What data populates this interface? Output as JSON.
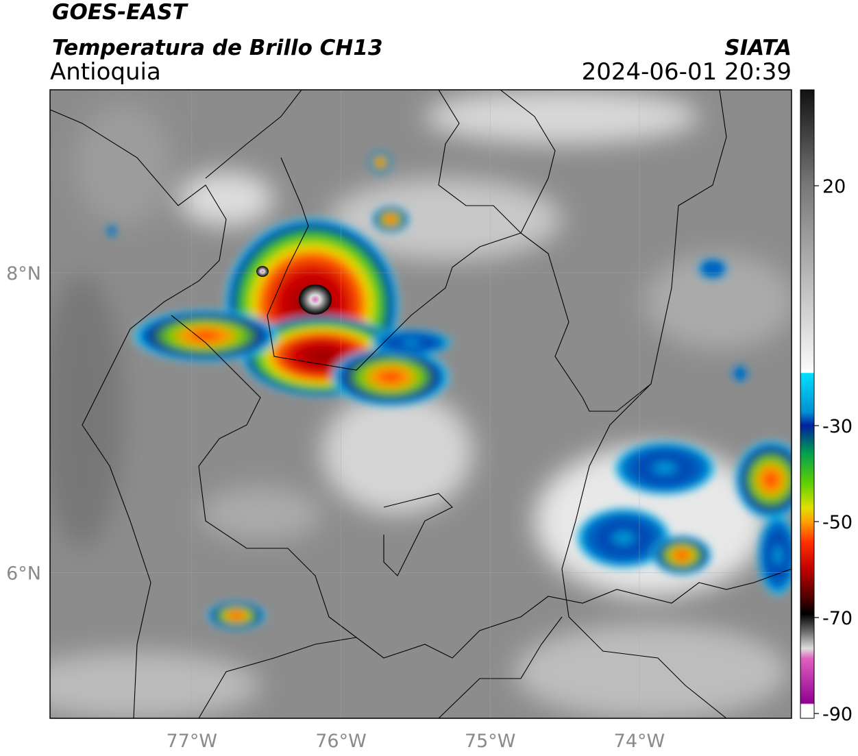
{
  "header": {
    "satellite": "GOES-EAST",
    "product": "Temperatura de Brillo CH13",
    "region": "Antioquia",
    "source": "SIATA",
    "datetime": "2024-06-01 20:39"
  },
  "map": {
    "xlim": [
      -77.95,
      -72.98
    ],
    "ylim": [
      5.03,
      9.22
    ],
    "xticks": [
      {
        "value": -77,
        "label": "77°W"
      },
      {
        "value": -76,
        "label": "76°W"
      },
      {
        "value": -75,
        "label": "75°W"
      },
      {
        "value": -74,
        "label": "74°W"
      }
    ],
    "yticks": [
      {
        "value": 8,
        "label": "8°N"
      },
      {
        "value": 6,
        "label": "6°N"
      }
    ],
    "grid": true
  },
  "colorbar": {
    "lim": [
      -91,
      40
    ],
    "ticks": [
      20,
      -30,
      -50,
      -70,
      -90
    ]
  }
}
